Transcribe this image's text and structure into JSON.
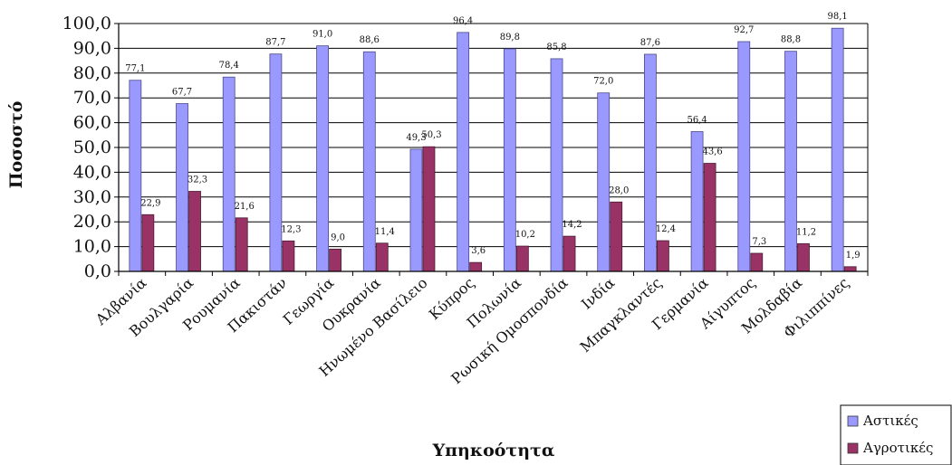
{
  "chart_data": {
    "type": "bar",
    "title": "",
    "xlabel": "Υπηκοότητα",
    "ylabel": "Ποσοστό",
    "ylim": [
      0,
      100
    ],
    "y_ticks": [
      "0,0",
      "10,0",
      "20,0",
      "30,0",
      "40,0",
      "50,0",
      "60,0",
      "70,0",
      "80,0",
      "90,0",
      "100,0"
    ],
    "grid": true,
    "legend_position": "bottom-right",
    "categories": [
      "Αλβανία",
      "Βουλγαρία",
      "Ρουμανία",
      "Πακιστάν",
      "Γεωργία",
      "Ουκρανία",
      "Ηνωμένο Βασίλειο",
      "Κύπρος",
      "Πολωνία",
      "Ρωσική Ομοσπονδία",
      "Ινδία",
      "Μπαγκλαντές",
      "Γερμανία",
      "Αίγυπτος",
      "Μολδαβία",
      "Φιλιππίνες"
    ],
    "series": [
      {
        "name": "Αστικές",
        "color": "#9999ff",
        "values": [
          77.1,
          67.7,
          78.4,
          87.7,
          91.0,
          88.6,
          49.3,
          96.4,
          89.8,
          85.8,
          72.0,
          87.6,
          56.4,
          92.7,
          88.8,
          98.1
        ],
        "labels": [
          "77,1",
          "67,7",
          "78,4",
          "87,7",
          "91,0",
          "88,6",
          "49,3",
          "96,4",
          "89,8",
          "85,8",
          "72,0",
          "87,6",
          "56,4",
          "92,7",
          "88,8",
          "98,1"
        ]
      },
      {
        "name": "Αγροτικές",
        "color": "#993366",
        "values": [
          22.9,
          32.3,
          21.6,
          12.3,
          9.0,
          11.4,
          50.3,
          3.6,
          10.2,
          14.2,
          28.0,
          12.4,
          43.6,
          7.3,
          11.2,
          1.9
        ],
        "labels": [
          "22,9",
          "32,3",
          "21,6",
          "12,3",
          "9,0",
          "11,4",
          "50,3",
          "3,6",
          "10,2",
          "14,2",
          "28,0",
          "12,4",
          "43,6",
          "7,3",
          "11,2",
          "1,9"
        ]
      }
    ]
  }
}
